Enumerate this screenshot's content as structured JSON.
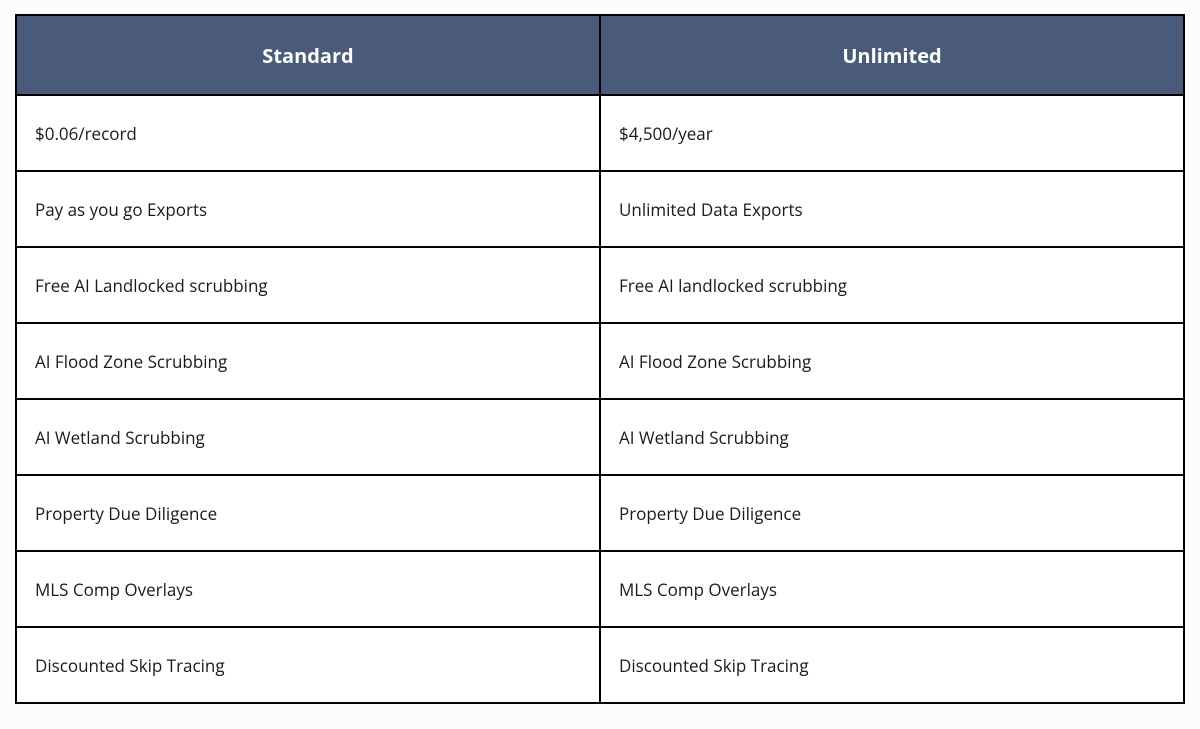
{
  "table": {
    "type": "table",
    "columns": [
      {
        "label": "Standard"
      },
      {
        "label": "Unlimited"
      }
    ],
    "rows": [
      [
        "$0.06/record",
        "$4,500/year"
      ],
      [
        "Pay as you go Exports",
        "Unlimited Data Exports"
      ],
      [
        "Free AI Landlocked scrubbing",
        "Free AI landlocked scrubbing"
      ],
      [
        "AI Flood Zone Scrubbing",
        "AI Flood Zone Scrubbing"
      ],
      [
        "AI Wetland Scrubbing",
        "AI Wetland Scrubbing"
      ],
      [
        "Property Due Diligence",
        "Property Due Diligence"
      ],
      [
        "MLS Comp Overlays",
        "MLS Comp Overlays"
      ],
      [
        "Discounted Skip Tracing",
        "Discounted Skip Tracing"
      ]
    ],
    "header_bg": "#4a5a7a",
    "header_text_color": "#ffffff",
    "header_fontsize": 20,
    "header_fontweight": 700,
    "cell_fontsize": 17,
    "cell_text_color": "#1a1a1a",
    "border_color": "#000000",
    "border_width": 2,
    "background_color": "#ffffff",
    "header_row_height": 80,
    "body_row_height": 76
  }
}
